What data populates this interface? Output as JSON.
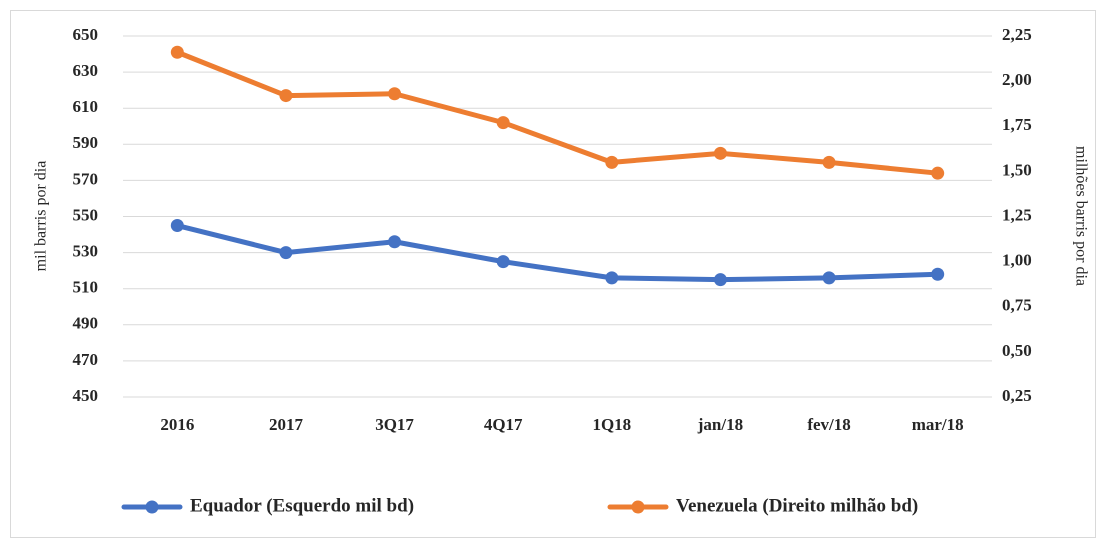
{
  "chart_data": {
    "type": "line",
    "categories": [
      "2016",
      "2017",
      "3Q17",
      "4Q17",
      "1Q18",
      "jan/18",
      "fev/18",
      "mar/18"
    ],
    "series": [
      {
        "name": "Equador (Esquerdo mil bd)",
        "color": "#4472c4",
        "values": [
          545,
          530,
          536,
          525,
          516,
          515,
          516,
          518
        ]
      },
      {
        "name": "Venezuela (Direito milhão bd)",
        "color": "#ed7d31",
        "axis": "y2",
        "values": [
          2.16,
          1.92,
          1.93,
          1.77,
          1.55,
          1.6,
          1.55,
          1.49
        ]
      }
    ],
    "y_label": "mil barris por dia",
    "y2_label": "milhões barris por dia",
    "ylim": [
      450,
      650
    ],
    "yticks": [
      450,
      470,
      490,
      510,
      530,
      550,
      570,
      590,
      610,
      630,
      650
    ],
    "y2lim": [
      0.25,
      2.25
    ],
    "y2ticks": [
      {
        "value": 0.25,
        "label": "0,25"
      },
      {
        "value": 0.5,
        "label": "0,50"
      },
      {
        "value": 0.75,
        "label": "0,75"
      },
      {
        "value": 1,
        "label": "1,00"
      },
      {
        "value": 1.25,
        "label": "1,25"
      },
      {
        "value": 1.5,
        "label": "1,50"
      },
      {
        "value": 1.75,
        "label": "1,75"
      },
      {
        "value": 2,
        "label": "2,00"
      },
      {
        "value": 2.25,
        "label": "2,25"
      }
    ],
    "grid": true,
    "legend": "bottom"
  }
}
